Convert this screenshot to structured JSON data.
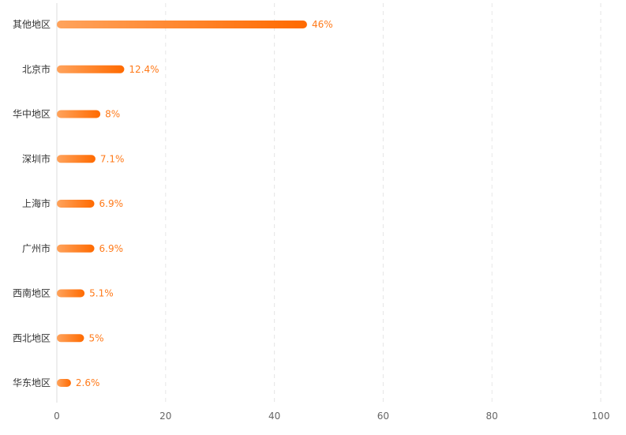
{
  "chart_data": {
    "type": "bar",
    "orientation": "horizontal",
    "categories": [
      "其他地区",
      "北京市",
      "华中地区",
      "深圳市",
      "上海市",
      "广州市",
      "西南地区",
      "西北地区",
      "华东地区"
    ],
    "values": [
      46,
      12.4,
      8,
      7.1,
      6.9,
      6.9,
      5.1,
      5,
      2.6
    ],
    "value_labels": [
      "46%",
      "12.4%",
      "8%",
      "7.1%",
      "6.9%",
      "6.9%",
      "5.1%",
      "5%",
      "2.6%"
    ],
    "xlim": [
      0,
      100
    ],
    "xticks": [
      0,
      20,
      40,
      60,
      80,
      100
    ],
    "xtick_labels": [
      "0",
      "20",
      "40",
      "60",
      "80",
      "100"
    ],
    "grid": "vertical dashed",
    "legend": "none",
    "colors": {
      "bar_start": "#ffa35c",
      "bar_end": "#ff6a00",
      "value_label": "#ff7a1a",
      "category_label": "#333333",
      "tick_label": "#666666",
      "grid": "#e6e6e6"
    }
  }
}
